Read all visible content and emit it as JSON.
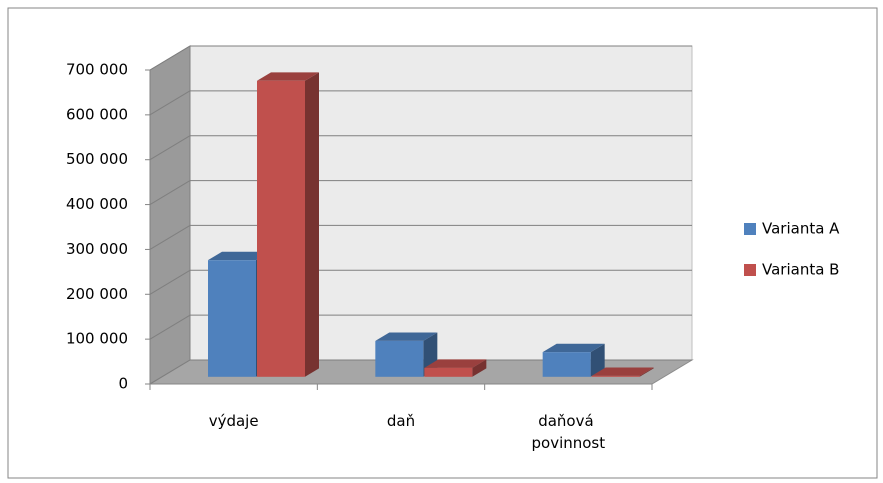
{
  "chart_data": {
    "type": "bar3d",
    "categories": [
      "výdaje",
      "daň",
      "daňová povinnost"
    ],
    "series": [
      {
        "name": "Varianta A",
        "color": "#4f81bd",
        "values": [
          260000,
          80000,
          55000
        ]
      },
      {
        "name": "Varianta B",
        "color": "#c0504d",
        "values": [
          660000,
          20000,
          2000
        ]
      }
    ],
    "ylim": [
      0,
      700000
    ],
    "yticks": [
      0,
      {
        "value": 100000,
        "label": "100 000"
      },
      {
        "value": 200000,
        "label": "200 000"
      },
      {
        "value": 300000,
        "label": "300 000"
      },
      {
        "value": 400000,
        "label": "400 000"
      },
      {
        "value": 500000,
        "label": "500 000"
      },
      {
        "value": 600000,
        "label": "600 000"
      },
      {
        "value": 700000,
        "label": "700 000"
      }
    ],
    "grid": true,
    "legend": "right"
  }
}
